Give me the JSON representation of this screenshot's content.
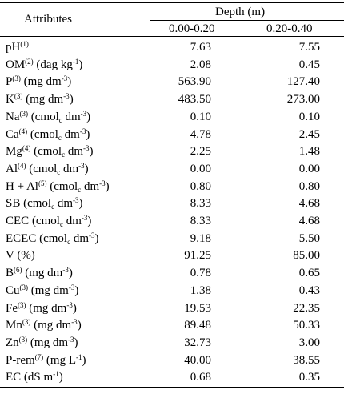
{
  "table": {
    "header_attributes": "Attributes",
    "header_depth": "Depth (m)",
    "col1": "0.00-0.20",
    "col2": "0.20-0.40",
    "rows": [
      {
        "name": "pH",
        "sup": "(1)",
        "unit": "",
        "v1": "7.63",
        "v2": "7.55"
      },
      {
        "name": "OM",
        "sup": "(2)",
        "unit": " (dag kg",
        "unit_sup": "-1",
        "unit_end": ")",
        "v1": "2.08",
        "v2": "0.45"
      },
      {
        "name": "P",
        "sup": "(3)",
        "unit": " (mg dm",
        "unit_sup": "-3",
        "unit_end": ")",
        "v1": "563.90",
        "v2": "127.40"
      },
      {
        "name": "K",
        "sup": "(3)",
        "unit": " (mg dm",
        "unit_sup": "-3",
        "unit_end": ")",
        "v1": "483.50",
        "v2": "273.00"
      },
      {
        "name": "Na",
        "sup": "(3)",
        "unit": " (cmol",
        "unit_sub": "c",
        "unit_mid": " dm",
        "unit_sup": "-3",
        "unit_end": ")",
        "v1": "0.10",
        "v2": "0.10"
      },
      {
        "name": "Ca",
        "sup": "(4)",
        "unit": " (cmol",
        "unit_sub": "c",
        "unit_mid": " dm",
        "unit_sup": "-3",
        "unit_end": ")",
        "v1": "4.78",
        "v2": "2.45"
      },
      {
        "name": "Mg",
        "sup": "(4)",
        "unit": " (cmol",
        "unit_sub": "c",
        "unit_mid": " dm",
        "unit_sup": "-3",
        "unit_end": ")",
        "v1": "2.25",
        "v2": "1.48"
      },
      {
        "name": "Al",
        "sup": "(4)",
        "unit": " (cmol",
        "unit_sub": "c",
        "unit_mid": " dm",
        "unit_sup": "-3",
        "unit_end": ")",
        "v1": "0.00",
        "v2": "0.00"
      },
      {
        "name": "H + Al",
        "sup": "(5)",
        "unit": " (cmol",
        "unit_sub": "c",
        "unit_mid": " dm",
        "unit_sup": "-3",
        "unit_end": ")",
        "v1": "0.80",
        "v2": "0.80"
      },
      {
        "name": "SB",
        "sup": "",
        "unit": " (cmol",
        "unit_sub": "c",
        "unit_mid": " dm",
        "unit_sup": "-3",
        "unit_end": ")",
        "v1": "8.33",
        "v2": "4.68"
      },
      {
        "name": "CEC",
        "sup": "",
        "unit": " (cmol",
        "unit_sub": "c",
        "unit_mid": " dm",
        "unit_sup": "-3",
        "unit_end": ")",
        "v1": "8.33",
        "v2": "4.68"
      },
      {
        "name": "ECEC",
        "sup": "",
        "unit": " (cmol",
        "unit_sub": "c",
        "unit_mid": " dm",
        "unit_sup": "-3",
        "unit_end": ")",
        "v1": "9.18",
        "v2": "5.50"
      },
      {
        "name": "V",
        "sup": "",
        "unit": " (%)",
        "v1": "91.25",
        "v2": "85.00"
      },
      {
        "name": "B",
        "sup": "(6)",
        "unit": " (mg dm",
        "unit_sup": "-3",
        "unit_end": ")",
        "v1": "0.78",
        "v2": "0.65"
      },
      {
        "name": "Cu",
        "sup": "(3)",
        "unit": " (mg dm",
        "unit_sup": "-3",
        "unit_end": ")",
        "v1": "1.38",
        "v2": "0.43"
      },
      {
        "name": "Fe",
        "sup": "(3)",
        "unit": " (mg dm",
        "unit_sup": "-3",
        "unit_end": ")",
        "v1": "19.53",
        "v2": "22.35"
      },
      {
        "name": "Mn",
        "sup": "(3)",
        "unit": " (mg dm",
        "unit_sup": "-3",
        "unit_end": ")",
        "v1": "89.48",
        "v2": "50.33"
      },
      {
        "name": "Zn",
        "sup": "(3)",
        "unit": " (mg dm",
        "unit_sup": "-3",
        "unit_end": ")",
        "v1": "32.73",
        "v2": "3.00"
      },
      {
        "name": "P-rem",
        "sup": "(7)",
        "unit": " (mg L",
        "unit_sup": "-1",
        "unit_end": ")",
        "v1": "40.00",
        "v2": "38.55"
      },
      {
        "name": "EC",
        "sup": "",
        "unit": " (dS m",
        "unit_sup": "-1",
        "unit_end": ")",
        "v1": "0.68",
        "v2": "0.35"
      }
    ]
  }
}
